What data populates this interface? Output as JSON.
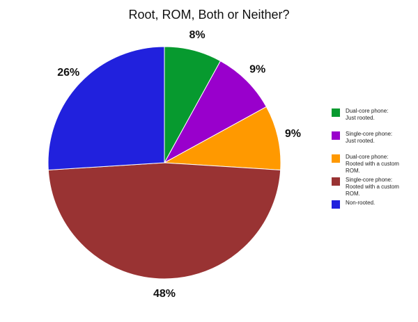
{
  "chart_data": {
    "type": "pie",
    "title": "Root, ROM, Both or Neither?",
    "series": [
      {
        "name": "Dual-core phone: Just rooted.",
        "color": "#079a2f",
        "values": [
          8
        ],
        "value_labels": [
          "8%"
        ]
      },
      {
        "name": "Single-core phone: Just rooted.",
        "color": "#9900cc",
        "values": [
          9
        ],
        "value_labels": [
          "9%"
        ]
      },
      {
        "name": "Dual-core phone: Rooted with a custom ROM.",
        "color": "#ff9900",
        "values": [
          9
        ],
        "value_labels": [
          "9%"
        ]
      },
      {
        "name": "Single-core phone: Rooted with a custom ROM.",
        "color": "#993333",
        "values": [
          48
        ],
        "value_labels": [
          "48%"
        ]
      },
      {
        "name": "Non-rooted.",
        "color": "#2121dd",
        "values": [
          26
        ],
        "value_labels": [
          "26%"
        ]
      }
    ],
    "legend": "right"
  }
}
